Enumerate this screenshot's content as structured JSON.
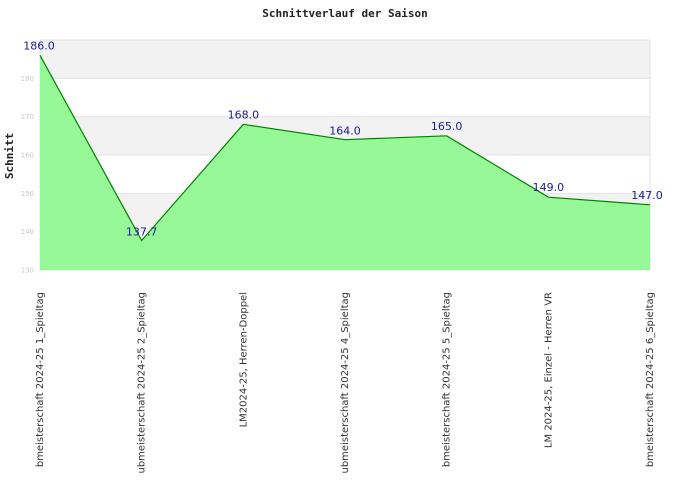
{
  "chart_data": {
    "type": "area",
    "title": "Schnittverlauf der Saison",
    "ylabel": "Schnitt",
    "xlabel": "",
    "ylim": [
      130,
      190
    ],
    "yticks": [
      130,
      140,
      150,
      160,
      170,
      180
    ],
    "grid": true,
    "categories": [
      "bmeisterschaft 2024-25   1_Spieltag",
      "ubmeisterschaft 2024-25   2_Spieltag",
      "LM2024-25, Herren-Doppel",
      "ubmeisterschaft 2024-25   4_Spieltag",
      "bmeisterschaft 2024-25   5_Spieltag",
      "LM 2024-25, Einzel - Herren VR",
      "bmeisterschaft 2024-25   6_Spieltag"
    ],
    "values": [
      186.0,
      137.7,
      168.0,
      164.0,
      165.0,
      149.0,
      147.0
    ],
    "value_labels": [
      "186.0",
      "137.7",
      "168.0",
      "164.0",
      "165.0",
      "149.0",
      "147.0"
    ],
    "colors": {
      "fill": "#90f890",
      "line": "#008000",
      "band": "#f2f2f2",
      "label": "#1a1a8c"
    }
  }
}
